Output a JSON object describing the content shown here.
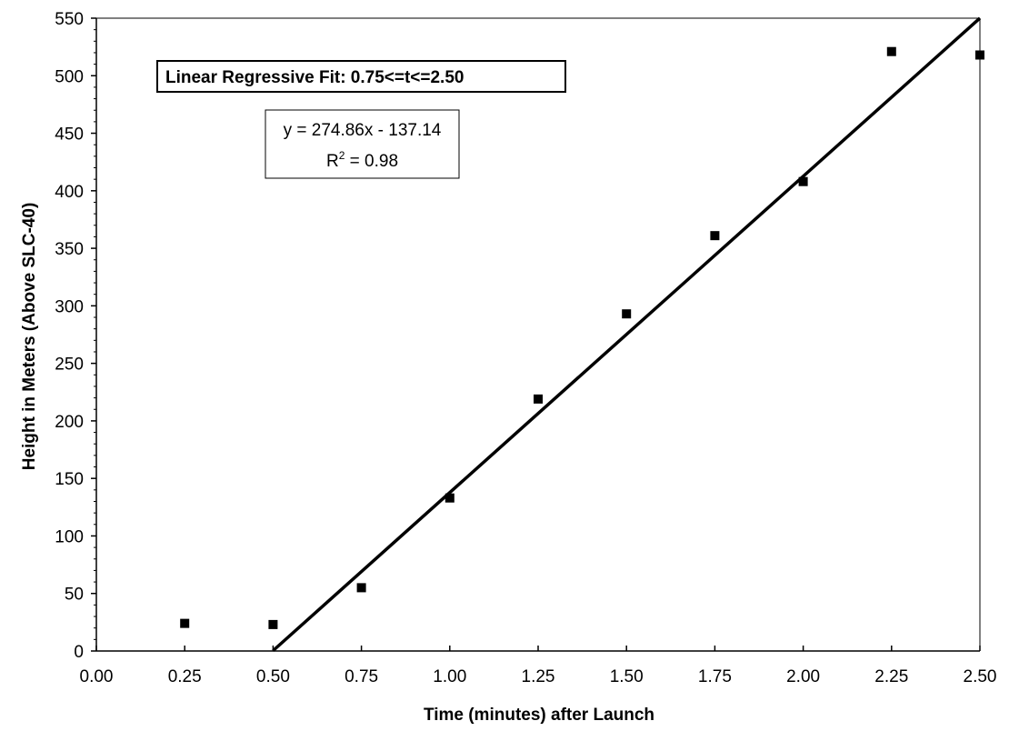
{
  "chart_data": {
    "type": "scatter",
    "xlabel": "Time (minutes) after Launch",
    "ylabel": "Height in Meters (Above SLC-40)",
    "xlim": [
      0,
      2.5
    ],
    "ylim": [
      0,
      550
    ],
    "x_ticks": [
      0,
      0.25,
      0.5,
      0.75,
      1.0,
      1.25,
      1.5,
      1.75,
      2.0,
      2.25,
      2.5
    ],
    "x_tick_labels": [
      "0.00",
      "0.25",
      "0.50",
      "0.75",
      "1.00",
      "1.25",
      "1.50",
      "1.75",
      "2.00",
      "2.25",
      "2.50"
    ],
    "y_ticks": [
      0,
      50,
      100,
      150,
      200,
      250,
      300,
      350,
      400,
      450,
      500,
      550
    ],
    "y_tick_labels": [
      "0",
      "50",
      "100",
      "150",
      "200",
      "250",
      "300",
      "350",
      "400",
      "450",
      "500",
      "550"
    ],
    "grid": false,
    "series": [
      {
        "x": [
          0.25,
          0.5,
          0.75,
          1.0,
          1.25,
          1.5,
          1.75,
          2.0,
          2.25,
          2.5
        ],
        "y": [
          24,
          23,
          55,
          133,
          219,
          293,
          361,
          408,
          521,
          518
        ]
      }
    ],
    "fit_line": {
      "slope": 274.86,
      "intercept": -137.14,
      "x_range": [
        0.5,
        2.5
      ]
    },
    "annotations": {
      "fit_title": "Linear Regressive Fit: 0.75<=t<=2.50",
      "equation": "y = 274.86x - 137.14",
      "r2_prefix": "R",
      "r2_exp": "2",
      "r2_suffix": " = 0.98"
    }
  }
}
